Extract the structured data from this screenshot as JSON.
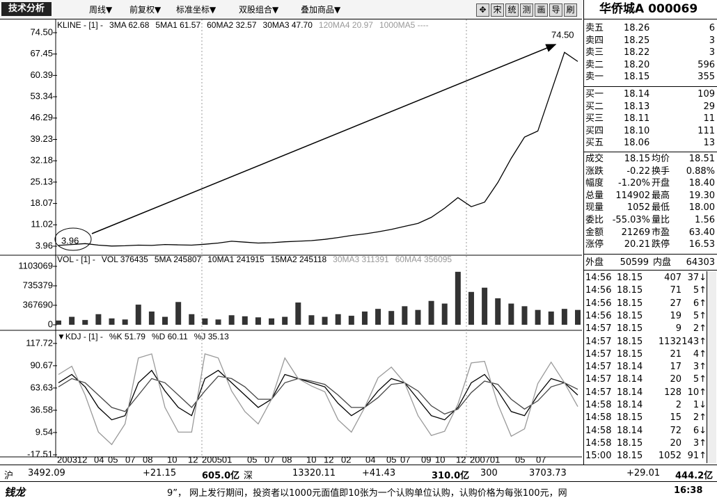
{
  "toolbar": {
    "title": "技术分析",
    "menus": [
      "周线▼",
      "前复权▼",
      "标准坐标▼",
      "双股组合▼",
      "叠加商品▼"
    ],
    "buttons": [
      "✥",
      "宋",
      "统",
      "测",
      "画",
      "导",
      "刷"
    ]
  },
  "stock": {
    "name": "华侨城A",
    "code": "000069"
  },
  "chart_data": [
    {
      "type": "line",
      "legend": [
        "KLINE - [1] -",
        "3MA 62.68",
        "5MA1 61.57",
        "60MA2 32.57",
        "30MA3 47.70",
        "120MA4 20.97",
        "1000MA5 ----"
      ],
      "ylim": [
        1.43,
        77.26
      ],
      "yticks": [
        {
          "value": 74.5,
          "label": "74.50"
        },
        67.45,
        60.39,
        53.34,
        46.29,
        39.23,
        32.18,
        25.13,
        18.07,
        11.02,
        3.96
      ],
      "annotations": {
        "high": "74.50",
        "low": "3.96"
      },
      "values": [
        4.2,
        4.5,
        4.8,
        4.3,
        4.0,
        4.1,
        4.3,
        4.2,
        4.5,
        4.4,
        4.3,
        4.6,
        5.0,
        5.6,
        5.3,
        5.0,
        5.1,
        5.4,
        5.6,
        5.8,
        6.2,
        6.8,
        7.5,
        8.0,
        8.7,
        9.5,
        10.5,
        11.5,
        13.5,
        16.5,
        20.0,
        17.0,
        18.5,
        25.0,
        33.0,
        40.0,
        42.0,
        55.0,
        68.0,
        65.0
      ],
      "color": "#000000"
    },
    {
      "type": "bar",
      "legend": [
        "VOL - [1] -",
        "VOL 376435",
        "5MA 245807",
        "10MA1 241915",
        "15MA2 245118",
        "30MA3 311391",
        "60MA4 356095"
      ],
      "ylim": [
        0,
        1234400
      ],
      "yticks": [
        1103069,
        735379,
        367690,
        0
      ],
      "values": [
        80000,
        150000,
        90000,
        200000,
        120000,
        100000,
        380000,
        250000,
        150000,
        430000,
        200000,
        120000,
        100000,
        180000,
        160000,
        140000,
        120000,
        150000,
        420000,
        180000,
        150000,
        200000,
        170000,
        250000,
        300000,
        260000,
        350000,
        280000,
        450000,
        400000,
        1000000,
        620000,
        700000,
        500000,
        400000,
        350000,
        280000,
        250000,
        300000,
        280000
      ],
      "color": "#333333"
    },
    {
      "type": "line",
      "legend": [
        "▼KDJ - [1] -",
        "%K 51.79",
        "%D 60.11",
        "%J 35.13"
      ],
      "ylim": [
        -19.2,
        126.04
      ],
      "yticks": [
        117.72,
        90.67,
        63.63,
        36.58,
        9.54,
        -17.51
      ],
      "series": [
        {
          "color": "#000000",
          "values": [
            70,
            80,
            65,
            40,
            25,
            30,
            70,
            85,
            60,
            40,
            30,
            75,
            85,
            70,
            55,
            40,
            50,
            80,
            75,
            70,
            65,
            45,
            30,
            40,
            60,
            75,
            70,
            50,
            30,
            25,
            40,
            70,
            80,
            60,
            35,
            30,
            55,
            75,
            70,
            55
          ]
        },
        {
          "color": "#444444",
          "values": [
            65,
            75,
            70,
            55,
            40,
            35,
            55,
            75,
            70,
            55,
            40,
            60,
            78,
            75,
            65,
            50,
            50,
            70,
            75,
            72,
            68,
            55,
            40,
            40,
            52,
            68,
            70,
            60,
            42,
            32,
            38,
            58,
            72,
            68,
            50,
            38,
            48,
            65,
            70,
            62
          ]
        },
        {
          "color": "#999999",
          "values": [
            80,
            90,
            55,
            10,
            -5,
            20,
            100,
            105,
            40,
            10,
            10,
            105,
            100,
            60,
            35,
            20,
            50,
            100,
            75,
            66,
            59,
            25,
            10,
            40,
            76,
            89,
            70,
            30,
            6,
            11,
            44,
            94,
            96,
            44,
            5,
            14,
            69,
            95,
            70,
            41
          ]
        }
      ],
      "xtick_labels": [
        "200312",
        "04",
        "05",
        "07",
        "08",
        "10",
        "12",
        "200501",
        "05",
        "07",
        "08",
        "10",
        "12",
        "02",
        "04",
        "05",
        "07",
        "09",
        "10",
        "12",
        "200701",
        "05",
        "07"
      ]
    }
  ],
  "quote": {
    "asks": [
      [
        "卖五",
        "18.26",
        "6"
      ],
      [
        "卖四",
        "18.25",
        "3"
      ],
      [
        "卖三",
        "18.22",
        "3"
      ],
      [
        "卖二",
        "18.20",
        "596"
      ],
      [
        "卖一",
        "18.15",
        "355"
      ]
    ],
    "bids": [
      [
        "买一",
        "18.14",
        "109"
      ],
      [
        "买二",
        "18.13",
        "29"
      ],
      [
        "买三",
        "18.11",
        "11"
      ],
      [
        "买四",
        "18.10",
        "111"
      ],
      [
        "买五",
        "18.06",
        "13"
      ]
    ],
    "stats": [
      [
        "成交",
        "18.15",
        "均价",
        "18.51"
      ],
      [
        "涨跌",
        "-0.22",
        "换手",
        "0.88%"
      ],
      [
        "幅度",
        "-1.20%",
        "开盘",
        "18.40"
      ],
      [
        "总量",
        "114902",
        "最高",
        "19.30"
      ],
      [
        "现量",
        "1052",
        "最低",
        "18.00"
      ],
      [
        "委比",
        "-55.03%",
        "量比",
        "1.56"
      ],
      [
        "金额",
        "21269",
        "市盈",
        "63.40"
      ],
      [
        "涨停",
        "20.21",
        "跌停",
        "16.53"
      ]
    ],
    "outer": [
      "外盘",
      "50599",
      "内盘",
      "64303"
    ],
    "ticks": [
      [
        "14:56",
        "18.15",
        "407",
        "37↓"
      ],
      [
        "14:56",
        "18.15",
        "71",
        "5↑"
      ],
      [
        "14:56",
        "18.15",
        "27",
        "6↑"
      ],
      [
        "14:56",
        "18.15",
        "19",
        "5↑"
      ],
      [
        "14:57",
        "18.15",
        "9",
        "2↑"
      ],
      [
        "14:57",
        "18.15",
        "1132",
        "143↑"
      ],
      [
        "14:57",
        "18.15",
        "21",
        "4↑"
      ],
      [
        "14:57",
        "18.14",
        "17",
        "3↑"
      ],
      [
        "14:57",
        "18.14",
        "20",
        "5↑"
      ],
      [
        "14:57",
        "18.14",
        "128",
        "10↑"
      ],
      [
        "14:58",
        "18.14",
        "2",
        "1↓"
      ],
      [
        "14:58",
        "18.15",
        "15",
        "2↑"
      ],
      [
        "14:58",
        "18.14",
        "72",
        "6↓"
      ],
      [
        "14:58",
        "18.15",
        "20",
        "3↑"
      ],
      [
        "15:00",
        "18.15",
        "1052",
        "91↑"
      ]
    ]
  },
  "status": {
    "indices": [
      [
        "沪",
        "3492.09",
        "+21.15",
        "605.0亿"
      ],
      [
        "深",
        "13320.11",
        "+41.43",
        "310.0亿"
      ],
      [
        "300",
        "3703.73",
        "+29.01",
        "444.2亿"
      ]
    ],
    "logo": "钱龙",
    "news": "9”， 网上发行期间，投资者以1000元面值即10张为一个认购单位认购，认购价格为每张100元，网",
    "time": "16:38"
  }
}
